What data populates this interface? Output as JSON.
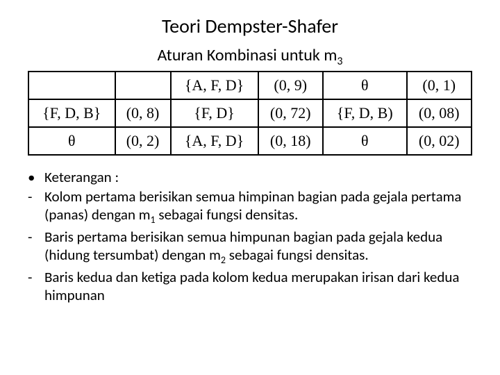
{
  "title": "Teori Dempster-Shafer",
  "subtitle_pre": "Aturan Kombinasi untuk m",
  "subtitle_sub": "3",
  "table": {
    "r0": {
      "c0": "",
      "c1": "",
      "c2": "{A, F, D}",
      "c3": "(0, 9)",
      "c4": "θ",
      "c5": "(0, 1)"
    },
    "r1": {
      "c0": "{F, D, B}",
      "c1": "(0, 8)",
      "c2": "{F, D}",
      "c3": "(0, 72)",
      "c4": "{F, D, B)",
      "c5": "(0, 08)"
    },
    "r2": {
      "c0": "θ",
      "c1": "(0, 2)",
      "c2": "{A, F, D}",
      "c3": "(0, 18)",
      "c4": "θ",
      "c5": "(0, 02)"
    }
  },
  "notes": {
    "n0": {
      "bullet": "•",
      "text": "Keterangan :"
    },
    "n1": {
      "bullet": "-",
      "text_pre": "Kolom pertama berisikan semua himpinan bagian pada gejala pertama (panas) dengan m",
      "sub": "1",
      "text_post": " sebagai fungsi densitas."
    },
    "n2": {
      "bullet": "-",
      "text_pre": "Baris pertama berisikan semua himpunan bagian pada gejala kedua (hidung tersumbat) dengan m",
      "sub": "2",
      "text_post": " sebagai fungsi densitas."
    },
    "n3": {
      "bullet": "-",
      "text": "Baris kedua dan ketiga pada kolom kedua merupakan irisan dari kedua himpunan"
    }
  },
  "colors": {
    "background": "#ffffff",
    "text": "#000000",
    "border": "#000000"
  }
}
